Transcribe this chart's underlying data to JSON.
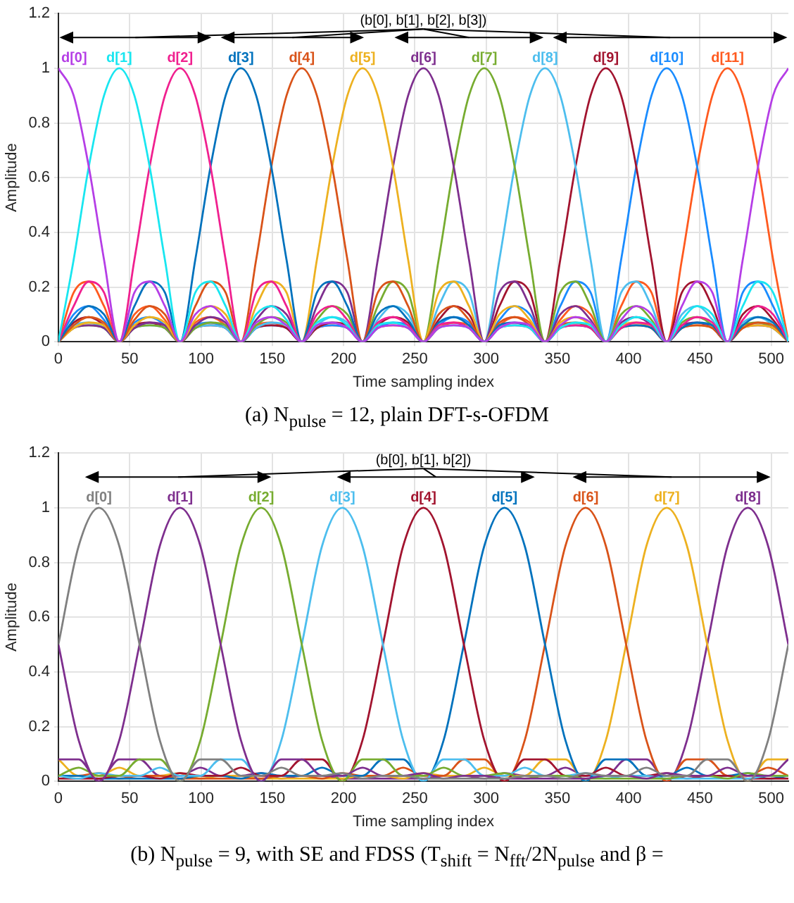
{
  "chart_data": [
    {
      "type": "line",
      "title": "(a) N$_{pulse}$ = 12, plain DFT-s-OFDM",
      "xlabel": "Time sampling index",
      "ylabel": "Amplitude",
      "annotations": [
        "(b[0], b[1], b[2], b[3])"
      ],
      "xlim": [
        0,
        512
      ],
      "xticks": [
        0,
        50,
        100,
        150,
        200,
        250,
        300,
        350,
        400,
        450,
        500
      ],
      "ylim": [
        0,
        1.2
      ],
      "yticks": [
        0,
        0.2,
        0.4,
        0.6,
        0.8,
        1,
        1.2
      ],
      "grid": true,
      "legend": false,
      "marker": "none",
      "x": [
        0,
        10.7,
        21.3,
        32,
        42.7,
        53.3,
        64,
        74.7,
        85.3,
        96,
        106.7,
        117.3,
        128,
        138.7,
        149.3,
        160,
        170.7,
        181.3,
        192,
        202.7,
        213.3,
        224,
        234.7,
        245.3,
        256,
        266.7,
        277.3,
        288,
        298.7,
        309.3,
        320,
        330.7,
        341.3,
        352,
        362.7,
        373.3,
        384,
        394.7,
        405.3,
        416,
        426.7,
        437.3,
        448,
        458.7,
        469.3,
        480,
        490.7,
        501.3,
        512
      ],
      "series": [
        {
          "name": "d[0]",
          "color": "#b53ee6",
          "values": [
            1,
            0.9,
            0.64,
            0.3,
            0,
            0.18,
            0.22,
            0.13,
            0,
            0.1,
            0.13,
            0.08,
            0,
            0.07,
            0.09,
            0.06,
            0,
            0.06,
            0.07,
            0.05,
            0,
            0.05,
            0.06,
            0.05,
            0,
            0.05,
            0.06,
            0.05,
            0,
            0.05,
            0.07,
            0.06,
            0,
            0.06,
            0.09,
            0.07,
            0,
            0.08,
            0.13,
            0.1,
            0,
            0.13,
            0.22,
            0.18,
            0,
            0.3,
            0.64,
            0.9,
            1
          ]
        },
        {
          "name": "d[1]",
          "color": "#19e6f0",
          "values": [
            0,
            0.3,
            0.64,
            0.9,
            1,
            0.9,
            0.64,
            0.3,
            0,
            0.18,
            0.22,
            0.13,
            0,
            0.1,
            0.13,
            0.08,
            0,
            0.07,
            0.09,
            0.06,
            0,
            0.06,
            0.07,
            0.05,
            0,
            0.05,
            0.06,
            0.05,
            0,
            0.05,
            0.06,
            0.05,
            0,
            0.05,
            0.07,
            0.06,
            0,
            0.06,
            0.09,
            0.07,
            0,
            0.08,
            0.13,
            0.1,
            0,
            0.13,
            0.22,
            0.18,
            0
          ]
        },
        {
          "name": "d[2]",
          "color": "#f0208f",
          "values": [
            0,
            0.13,
            0.22,
            0.18,
            0,
            0.3,
            0.64,
            0.9,
            1,
            0.9,
            0.64,
            0.3,
            0,
            0.18,
            0.22,
            0.13,
            0,
            0.1,
            0.13,
            0.08,
            0,
            0.07,
            0.09,
            0.06,
            0,
            0.06,
            0.07,
            0.05,
            0,
            0.05,
            0.06,
            0.05,
            0,
            0.05,
            0.06,
            0.05,
            0,
            0.05,
            0.07,
            0.06,
            0,
            0.06,
            0.09,
            0.07,
            0,
            0.08,
            0.13,
            0.1,
            0
          ]
        },
        {
          "name": "d[3]",
          "color": "#0072bd",
          "values": [
            0,
            0.08,
            0.13,
            0.1,
            0,
            0.13,
            0.22,
            0.18,
            0,
            0.3,
            0.64,
            0.9,
            1,
            0.9,
            0.64,
            0.3,
            0,
            0.18,
            0.22,
            0.13,
            0,
            0.1,
            0.13,
            0.08,
            0,
            0.07,
            0.09,
            0.06,
            0,
            0.06,
            0.07,
            0.05,
            0,
            0.05,
            0.06,
            0.05,
            0,
            0.05,
            0.06,
            0.05,
            0,
            0.05,
            0.07,
            0.06,
            0,
            0.06,
            0.09,
            0.07,
            0
          ]
        },
        {
          "name": "d[4]",
          "color": "#d95319",
          "values": [
            0,
            0.06,
            0.09,
            0.07,
            0,
            0.08,
            0.13,
            0.1,
            0,
            0.13,
            0.22,
            0.18,
            0,
            0.3,
            0.64,
            0.9,
            1,
            0.9,
            0.64,
            0.3,
            0,
            0.18,
            0.22,
            0.13,
            0,
            0.1,
            0.13,
            0.08,
            0,
            0.07,
            0.09,
            0.06,
            0,
            0.06,
            0.07,
            0.05,
            0,
            0.05,
            0.06,
            0.05,
            0,
            0.05,
            0.06,
            0.05,
            0,
            0.05,
            0.07,
            0.06,
            0
          ]
        },
        {
          "name": "d[5]",
          "color": "#edb120",
          "values": [
            0,
            0.05,
            0.07,
            0.06,
            0,
            0.06,
            0.09,
            0.07,
            0,
            0.08,
            0.13,
            0.1,
            0,
            0.13,
            0.22,
            0.18,
            0,
            0.3,
            0.64,
            0.9,
            1,
            0.9,
            0.64,
            0.3,
            0,
            0.18,
            0.22,
            0.13,
            0,
            0.1,
            0.13,
            0.08,
            0,
            0.07,
            0.09,
            0.06,
            0,
            0.06,
            0.07,
            0.05,
            0,
            0.05,
            0.06,
            0.05,
            0,
            0.05,
            0.06,
            0.05,
            0
          ]
        },
        {
          "name": "d[6]",
          "color": "#7e2f8e",
          "values": [
            0,
            0.05,
            0.06,
            0.05,
            0,
            0.05,
            0.07,
            0.06,
            0,
            0.06,
            0.09,
            0.07,
            0,
            0.08,
            0.13,
            0.1,
            0,
            0.13,
            0.22,
            0.18,
            0,
            0.3,
            0.64,
            0.9,
            1,
            0.9,
            0.64,
            0.3,
            0,
            0.18,
            0.22,
            0.13,
            0,
            0.1,
            0.13,
            0.08,
            0,
            0.07,
            0.09,
            0.06,
            0,
            0.06,
            0.07,
            0.05,
            0,
            0.05,
            0.06,
            0.05,
            0
          ]
        },
        {
          "name": "d[7]",
          "color": "#77ac30",
          "values": [
            0,
            0.05,
            0.06,
            0.05,
            0,
            0.05,
            0.06,
            0.05,
            0,
            0.05,
            0.07,
            0.06,
            0,
            0.06,
            0.09,
            0.07,
            0,
            0.08,
            0.13,
            0.1,
            0,
            0.13,
            0.22,
            0.18,
            0,
            0.3,
            0.64,
            0.9,
            1,
            0.9,
            0.64,
            0.3,
            0,
            0.18,
            0.22,
            0.13,
            0,
            0.1,
            0.13,
            0.08,
            0,
            0.07,
            0.09,
            0.06,
            0,
            0.06,
            0.07,
            0.05,
            0
          ]
        },
        {
          "name": "d[8]",
          "color": "#4dbeee",
          "values": [
            0,
            0.06,
            0.07,
            0.05,
            0,
            0.05,
            0.06,
            0.05,
            0,
            0.05,
            0.06,
            0.05,
            0,
            0.05,
            0.07,
            0.06,
            0,
            0.06,
            0.09,
            0.07,
            0,
            0.08,
            0.13,
            0.1,
            0,
            0.13,
            0.22,
            0.18,
            0,
            0.3,
            0.64,
            0.9,
            1,
            0.9,
            0.64,
            0.3,
            0,
            0.18,
            0.22,
            0.13,
            0,
            0.1,
            0.13,
            0.08,
            0,
            0.07,
            0.09,
            0.06,
            0
          ]
        },
        {
          "name": "d[9]",
          "color": "#a2142f",
          "values": [
            0,
            0.07,
            0.09,
            0.06,
            0,
            0.06,
            0.07,
            0.05,
            0,
            0.05,
            0.06,
            0.05,
            0,
            0.05,
            0.06,
            0.05,
            0,
            0.05,
            0.07,
            0.06,
            0,
            0.06,
            0.09,
            0.07,
            0,
            0.08,
            0.13,
            0.1,
            0,
            0.13,
            0.22,
            0.18,
            0,
            0.3,
            0.64,
            0.9,
            1,
            0.9,
            0.64,
            0.3,
            0,
            0.18,
            0.22,
            0.13,
            0,
            0.1,
            0.13,
            0.08,
            0
          ]
        },
        {
          "name": "d[10]",
          "color": "#1a8cff",
          "values": [
            0,
            0.1,
            0.13,
            0.08,
            0,
            0.07,
            0.09,
            0.06,
            0,
            0.06,
            0.07,
            0.05,
            0,
            0.05,
            0.06,
            0.05,
            0,
            0.05,
            0.06,
            0.05,
            0,
            0.05,
            0.07,
            0.06,
            0,
            0.06,
            0.09,
            0.07,
            0,
            0.08,
            0.13,
            0.1,
            0,
            0.13,
            0.22,
            0.18,
            0,
            0.3,
            0.64,
            0.9,
            1,
            0.9,
            0.64,
            0.3,
            0,
            0.18,
            0.22,
            0.13,
            0
          ]
        },
        {
          "name": "d[11]",
          "color": "#ff5a1f",
          "values": [
            0,
            0.18,
            0.22,
            0.13,
            0,
            0.1,
            0.13,
            0.08,
            0,
            0.07,
            0.09,
            0.06,
            0,
            0.06,
            0.07,
            0.05,
            0,
            0.05,
            0.06,
            0.05,
            0,
            0.05,
            0.06,
            0.05,
            0,
            0.05,
            0.07,
            0.06,
            0,
            0.06,
            0.09,
            0.07,
            0,
            0.08,
            0.13,
            0.1,
            0,
            0.13,
            0.22,
            0.18,
            0,
            0.3,
            0.64,
            0.9,
            1,
            0.9,
            0.64,
            0.3,
            0
          ]
        }
      ]
    },
    {
      "type": "line",
      "title": "(b) N$_{pulse}$ = 9, with SE and FDSS (T$_{shift}$ = N$_{fft}$/2N$_{pulse}$ and β =",
      "xlabel": "Time sampling index",
      "ylabel": "Amplitude",
      "annotations": [
        "(b[0], b[1], b[2])"
      ],
      "xlim": [
        0,
        512
      ],
      "xticks": [
        0,
        50,
        100,
        150,
        200,
        250,
        300,
        350,
        400,
        450,
        500
      ],
      "ylim": [
        0,
        1.2
      ],
      "yticks": [
        0,
        0.2,
        0.4,
        0.6,
        0.8,
        1,
        1.2
      ],
      "grid": true,
      "legend": false,
      "marker": "none",
      "x": [
        0,
        14.2,
        28.4,
        42.7,
        56.9,
        71.1,
        85.3,
        99.6,
        113.8,
        128,
        142.2,
        156.4,
        170.7,
        184.9,
        199.1,
        213.3,
        227.6,
        241.8,
        256,
        270.2,
        284.4,
        298.7,
        312.9,
        327.1,
        341.3,
        355.6,
        369.8,
        384,
        398.2,
        412.4,
        426.7,
        440.9,
        455.1,
        469.3,
        483.6,
        497.8,
        512
      ],
      "series": [
        {
          "name": "d[0]",
          "color": "#808080",
          "values": [
            0.5,
            0.86,
            1,
            0.86,
            0.5,
            0.15,
            0,
            0.08,
            0.08,
            0.02,
            0.02,
            0.05,
            0.02,
            0.02,
            0.03,
            0.01,
            0.02,
            0.02,
            0.01,
            0.01,
            0.01,
            0.01,
            0.01,
            0.02,
            0.02,
            0.01,
            0.03,
            0.02,
            0.02,
            0.05,
            0.02,
            0.02,
            0.08,
            0.08,
            0,
            0.15,
            0.5
          ]
        },
        {
          "name": "d[1]",
          "color": "#7e2f8e",
          "values": [
            0.08,
            0.08,
            0,
            0.15,
            0.5,
            0.86,
            1,
            0.86,
            0.5,
            0.15,
            0,
            0.08,
            0.08,
            0.02,
            0.02,
            0.05,
            0.02,
            0.02,
            0.03,
            0.01,
            0.02,
            0.02,
            0.01,
            0.01,
            0.01,
            0.01,
            0.01,
            0.02,
            0.02,
            0.01,
            0.03,
            0.02,
            0.02,
            0.05,
            0.02,
            0.02,
            0.08
          ]
        },
        {
          "name": "d[2]",
          "color": "#77ac30",
          "values": [
            0.02,
            0.05,
            0.02,
            0.02,
            0.08,
            0.08,
            0,
            0.15,
            0.5,
            0.86,
            1,
            0.86,
            0.5,
            0.15,
            0,
            0.08,
            0.08,
            0.02,
            0.02,
            0.05,
            0.02,
            0.02,
            0.03,
            0.01,
            0.02,
            0.02,
            0.01,
            0.01,
            0.01,
            0.01,
            0.01,
            0.02,
            0.02,
            0.01,
            0.03,
            0.02,
            0.02
          ]
        },
        {
          "name": "d[3]",
          "color": "#4dbeee",
          "values": [
            0.02,
            0.01,
            0.03,
            0.02,
            0.02,
            0.05,
            0.02,
            0.02,
            0.08,
            0.08,
            0,
            0.15,
            0.5,
            0.86,
            1,
            0.86,
            0.5,
            0.15,
            0,
            0.08,
            0.08,
            0.02,
            0.02,
            0.05,
            0.02,
            0.02,
            0.03,
            0.01,
            0.02,
            0.02,
            0.01,
            0.01,
            0.01,
            0.01,
            0.01,
            0.02,
            0.02
          ]
        },
        {
          "name": "d[4]",
          "color": "#a2142f",
          "values": [
            0.01,
            0.01,
            0.01,
            0.02,
            0.02,
            0.01,
            0.03,
            0.02,
            0.02,
            0.05,
            0.02,
            0.02,
            0.08,
            0.08,
            0,
            0.15,
            0.5,
            0.86,
            1,
            0.86,
            0.5,
            0.15,
            0,
            0.08,
            0.08,
            0.02,
            0.02,
            0.05,
            0.02,
            0.02,
            0.03,
            0.01,
            0.02,
            0.02,
            0.01,
            0.01,
            0.01
          ]
        },
        {
          "name": "d[5]",
          "color": "#0072bd",
          "values": [
            0.02,
            0.02,
            0.01,
            0.01,
            0.01,
            0.01,
            0.01,
            0.02,
            0.02,
            0.01,
            0.03,
            0.02,
            0.02,
            0.05,
            0.02,
            0.02,
            0.08,
            0.08,
            0,
            0.15,
            0.5,
            0.86,
            1,
            0.86,
            0.5,
            0.15,
            0,
            0.08,
            0.08,
            0.02,
            0.02,
            0.05,
            0.02,
            0.02,
            0.03,
            0.01,
            0.02
          ]
        },
        {
          "name": "d[6]",
          "color": "#d95319",
          "values": [
            0.02,
            0.02,
            0.03,
            0.01,
            0.02,
            0.02,
            0.01,
            0.01,
            0.01,
            0.01,
            0.01,
            0.02,
            0.02,
            0.01,
            0.03,
            0.02,
            0.02,
            0.05,
            0.02,
            0.02,
            0.08,
            0.08,
            0,
            0.15,
            0.5,
            0.86,
            1,
            0.86,
            0.5,
            0.15,
            0,
            0.08,
            0.08,
            0.02,
            0.02,
            0.05,
            0.02
          ]
        },
        {
          "name": "d[7]",
          "color": "#edb120",
          "values": [
            0.08,
            0.02,
            0.02,
            0.05,
            0.02,
            0.02,
            0.03,
            0.01,
            0.02,
            0.02,
            0.01,
            0.01,
            0.01,
            0.01,
            0.01,
            0.02,
            0.02,
            0.01,
            0.03,
            0.02,
            0.02,
            0.05,
            0.02,
            0.02,
            0.08,
            0.08,
            0,
            0.15,
            0.5,
            0.86,
            1,
            0.86,
            0.5,
            0.15,
            0,
            0.08,
            0.08
          ]
        },
        {
          "name": "d[8]",
          "color": "#7e2f8e",
          "values": [
            0.5,
            0.15,
            0,
            0.08,
            0.08,
            0.02,
            0.02,
            0.05,
            0.02,
            0.02,
            0.03,
            0.01,
            0.02,
            0.02,
            0.01,
            0.01,
            0.01,
            0.01,
            0.01,
            0.02,
            0.02,
            0.01,
            0.03,
            0.02,
            0.02,
            0.05,
            0.02,
            0.02,
            0.08,
            0.08,
            0,
            0.15,
            0.5,
            0.86,
            1,
            0.86,
            0.5
          ]
        }
      ]
    }
  ]
}
